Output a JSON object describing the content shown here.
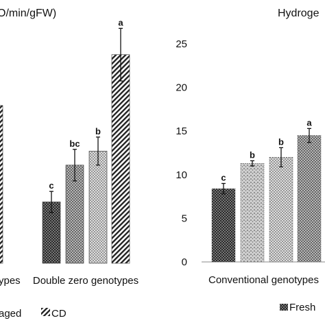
{
  "figure": {
    "left_label": "O/min/gFW)",
    "right_label": "Hydroge"
  },
  "legend": [
    "aged",
    "CD",
    "Fresh"
  ],
  "chart_data": [
    {
      "type": "bar",
      "categories": [
        "ypes",
        "Double zero genotypes"
      ],
      "series": [
        {
          "values": [
            null,
            3.5
          ],
          "labels": [
            null,
            "c"
          ]
        },
        {
          "values": [
            null,
            5.6
          ],
          "labels": [
            null,
            "bc"
          ]
        },
        {
          "values": [
            null,
            6.4
          ],
          "labels": [
            null,
            "b"
          ]
        },
        {
          "values": [
            null,
            11.9
          ],
          "labels": [
            null,
            "a"
          ]
        }
      ],
      "errors": [
        0.6,
        0.9,
        0.8,
        1.5
      ],
      "hidden_bar_value": 9.0,
      "xlabel": "",
      "ylabel": "O/min/gFW)",
      "ylim": [
        0,
        14
      ]
    },
    {
      "type": "bar",
      "categories": [
        "Conventional genotypes"
      ],
      "series": [
        {
          "values": [
            8.4
          ],
          "labels": [
            "c"
          ]
        },
        {
          "values": [
            11.3
          ],
          "labels": [
            "b"
          ]
        },
        {
          "values": [
            12.0
          ],
          "labels": [
            "b"
          ]
        },
        {
          "values": [
            14.5
          ],
          "labels": [
            "a"
          ]
        }
      ],
      "errors": [
        0.6,
        0.3,
        1.1,
        0.8
      ],
      "xlabel": "",
      "ylabel": "Hydroge",
      "ylim": [
        0,
        25
      ],
      "yticks": [
        0,
        5,
        10,
        15,
        20,
        25
      ]
    }
  ]
}
